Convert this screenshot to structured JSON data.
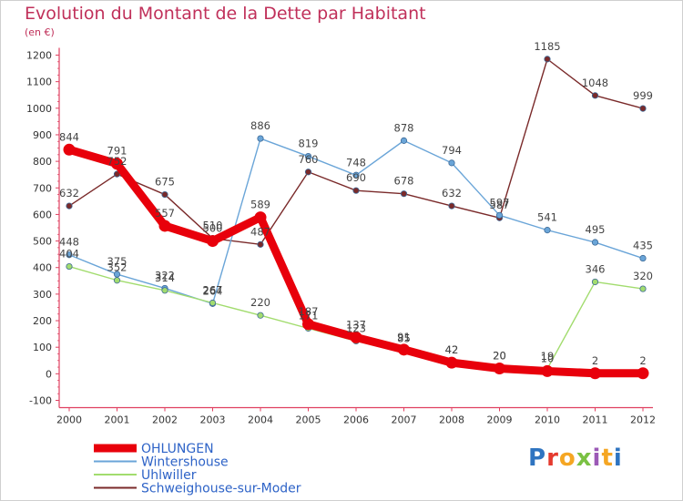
{
  "header": {
    "title": "Evolution du Montant de la Dette par Habitant",
    "subtitle": "(en €)"
  },
  "logo": {
    "text": "Proxiti",
    "colors": [
      "#2f74c0",
      "#e53a2f",
      "#f5a623",
      "#7ac143",
      "#9b59b6",
      "#f5a623",
      "#2f74c0"
    ]
  },
  "chart_data": {
    "type": "line",
    "x": [
      "2000",
      "2001",
      "2002",
      "2003",
      "2004",
      "2005",
      "2006",
      "2007",
      "2008",
      "2009",
      "2010",
      "2011",
      "2012"
    ],
    "ylim": [
      -100,
      1200
    ],
    "yticks": [
      -100,
      0,
      100,
      200,
      300,
      400,
      500,
      600,
      700,
      800,
      900,
      1000,
      1100,
      1200
    ],
    "grid": false,
    "legend": "bottom-left",
    "series": [
      {
        "name": "OHLUNGEN",
        "color": "#e8000b",
        "values": [
          844,
          791,
          557,
          500,
          589,
          187,
          137,
          91,
          42,
          20,
          10,
          2,
          2
        ],
        "labels": [
          "844",
          "791",
          "557",
          "500",
          "589",
          "187",
          "137",
          "91",
          "42",
          "20",
          "10",
          "2",
          "2"
        ]
      },
      {
        "name": "Wintershouse",
        "color": "#6aa5d8",
        "values": [
          448,
          375,
          322,
          264,
          886,
          819,
          748,
          878,
          794,
          597,
          541,
          495,
          435
        ],
        "labels": [
          "448",
          "375",
          "322",
          "264",
          "886",
          "819",
          "748",
          "878",
          "794",
          "597",
          "541",
          "495",
          "435"
        ]
      },
      {
        "name": "Uhlwiller",
        "color": "#a2dc6e",
        "values": [
          404,
          352,
          314,
          267,
          220,
          171,
          123,
          85,
          42,
          20,
          19,
          346,
          320
        ],
        "labels": [
          "404",
          "352",
          "314",
          "267",
          "220",
          "171",
          "123",
          "85",
          "42",
          "20",
          "19",
          "346",
          "320"
        ]
      },
      {
        "name": "Schweighouse-sur-Moder",
        "color": "#7a2a2a",
        "values": [
          632,
          752,
          675,
          510,
          487,
          760,
          690,
          678,
          632,
          587,
          1185,
          1048,
          999
        ],
        "labels": [
          "632",
          "752",
          "675",
          "510",
          "487",
          "760",
          "690",
          "678",
          "632",
          "587",
          "1185",
          "1048",
          "999"
        ]
      }
    ]
  }
}
